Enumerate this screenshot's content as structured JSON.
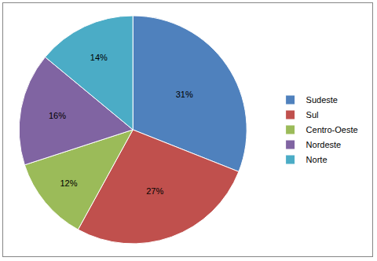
{
  "chart_data": {
    "type": "pie",
    "categories": [
      "Sudeste",
      "Sul",
      "Centro-Oeste",
      "Nordeste",
      "Norte"
    ],
    "values": [
      31,
      27,
      12,
      16,
      14
    ],
    "value_labels": [
      "31%",
      "27%",
      "12%",
      "16%",
      "14%"
    ],
    "colors": [
      "#4f81bd",
      "#c0504d",
      "#9bbb59",
      "#8064a2",
      "#4bacc6"
    ],
    "data_labels": true,
    "legend": "right"
  }
}
